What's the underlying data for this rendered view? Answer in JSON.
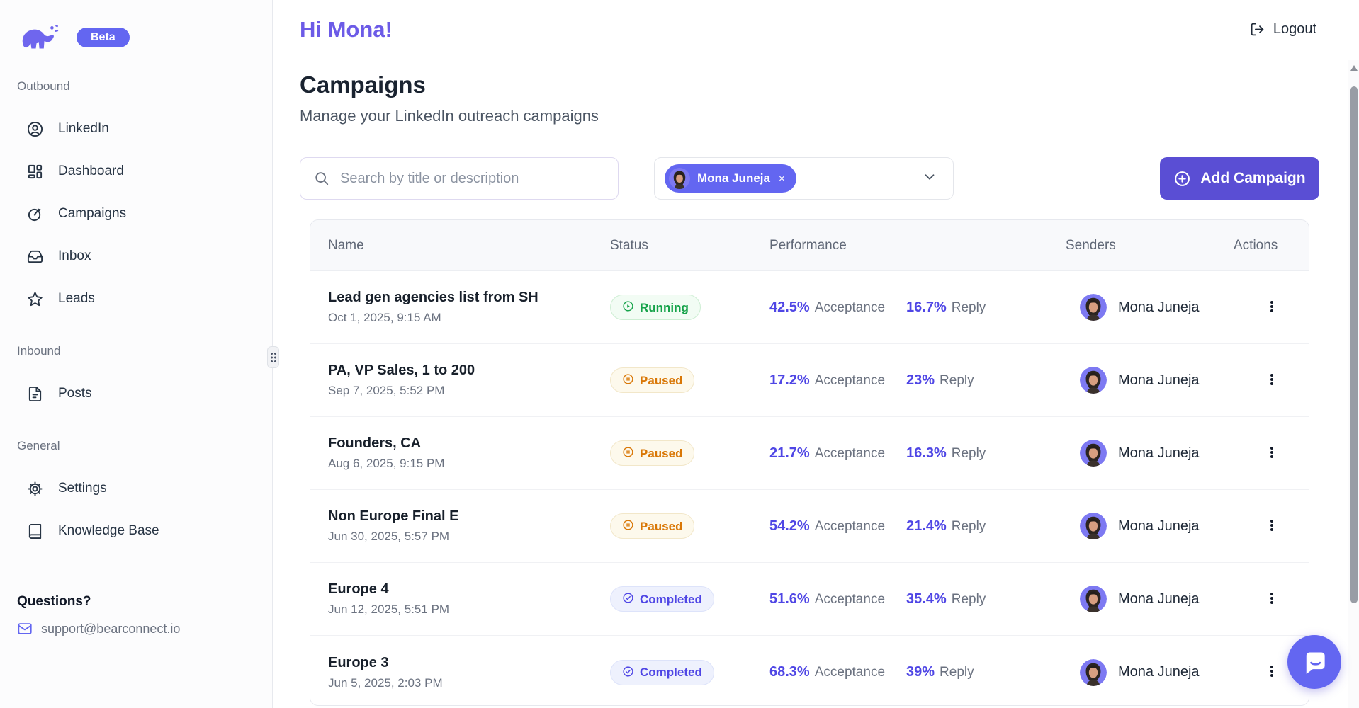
{
  "brand": {
    "beta_label": "Beta"
  },
  "sidebar": {
    "sections": [
      {
        "label": "Outbound",
        "items": [
          {
            "icon": "user-circle-icon",
            "label": "LinkedIn"
          },
          {
            "icon": "dashboard-icon",
            "label": "Dashboard"
          },
          {
            "icon": "goal-icon",
            "label": "Campaigns"
          },
          {
            "icon": "inbox-icon",
            "label": "Inbox"
          },
          {
            "icon": "star-icon",
            "label": "Leads"
          }
        ]
      },
      {
        "label": "Inbound",
        "items": [
          {
            "icon": "file-text-icon",
            "label": "Posts"
          }
        ]
      },
      {
        "label": "General",
        "items": [
          {
            "icon": "gear-icon",
            "label": "Settings"
          },
          {
            "icon": "book-icon",
            "label": "Knowledge Base"
          }
        ]
      }
    ],
    "footer": {
      "heading": "Questions?",
      "email": "support@bearconnect.io"
    }
  },
  "header": {
    "greeting": "Hi Mona!",
    "logout_label": "Logout"
  },
  "page": {
    "title": "Campaigns",
    "subtitle": "Manage your LinkedIn outreach campaigns"
  },
  "toolbar": {
    "search_placeholder": "Search by title or description",
    "sender_filter": {
      "selected": "Mona Juneja",
      "remove_label": "×"
    },
    "add_campaign_label": "Add Campaign"
  },
  "table": {
    "columns": [
      "Name",
      "Status",
      "Performance",
      "Senders",
      "Actions"
    ],
    "labels": {
      "acceptance": "Acceptance",
      "reply": "Reply"
    },
    "rows": [
      {
        "name": "Lead gen agencies list from SH",
        "date": "Oct 1, 2025, 9:15 AM",
        "status": "Running",
        "acceptance": "42.5%",
        "reply": "16.7%",
        "sender": "Mona Juneja"
      },
      {
        "name": "PA, VP Sales, 1 to 200",
        "date": "Sep 7, 2025, 5:52 PM",
        "status": "Paused",
        "acceptance": "17.2%",
        "reply": "23%",
        "sender": "Mona Juneja"
      },
      {
        "name": "Founders, CA",
        "date": "Aug 6, 2025, 9:15 PM",
        "status": "Paused",
        "acceptance": "21.7%",
        "reply": "16.3%",
        "sender": "Mona Juneja"
      },
      {
        "name": "Non Europe Final E",
        "date": "Jun 30, 2025, 5:57 PM",
        "status": "Paused",
        "acceptance": "54.2%",
        "reply": "21.4%",
        "sender": "Mona Juneja"
      },
      {
        "name": "Europe 4",
        "date": "Jun 12, 2025, 5:51 PM",
        "status": "Completed",
        "acceptance": "51.6%",
        "reply": "35.4%",
        "sender": "Mona Juneja"
      },
      {
        "name": "Europe 3",
        "date": "Jun 5, 2025, 2:03 PM",
        "status": "Completed",
        "acceptance": "68.3%",
        "reply": "39%",
        "sender": "Mona Juneja"
      }
    ]
  },
  "colors": {
    "accent": "#6366f1",
    "greeting_purple": "#6c5be7",
    "add_button": "#5a4ed4",
    "percent": "#4f46e5",
    "status_running": "#16a34a",
    "status_paused": "#d97706",
    "status_completed": "#4f46e5"
  }
}
